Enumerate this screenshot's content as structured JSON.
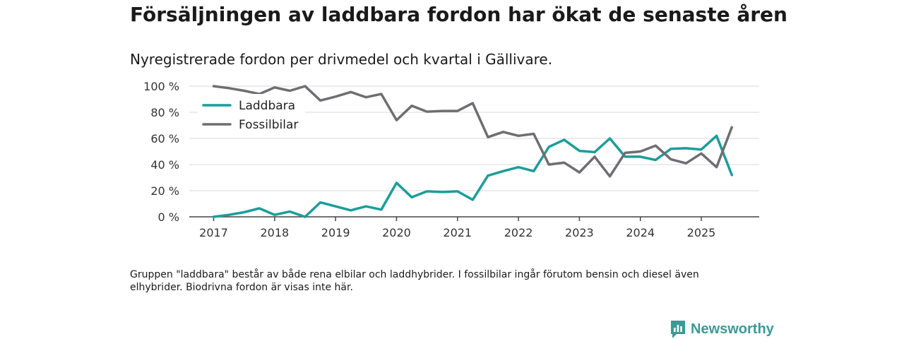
{
  "title": "Försäljningen av laddbara fordon har ökat de senaste åren",
  "subtitle": "Nyregistrerade fordon per drivmedel och kvartal i Gällivare.",
  "footnote": "Gruppen \"laddbara\" består av både rena elbilar och laddhybrider. I fossilbilar ingår förutom bensin och diesel även elhybrider. Biodrivna fordon är visas inte här.",
  "brand": {
    "name": "Newsworthy",
    "icon": "newsworthy-logo-icon",
    "color": "#3a9a96"
  },
  "chart_data": {
    "type": "line",
    "title": "Nyregistrerade fordon per drivmedel och kvartal i Gällivare.",
    "xlabel": "",
    "ylabel": "",
    "ylim": [
      0,
      100
    ],
    "xlim": [
      2016.6,
      2025.95
    ],
    "yticks": [
      0,
      20,
      40,
      60,
      80,
      100
    ],
    "ytick_labels": [
      "0 %",
      "20 %",
      "40 %",
      "60 %",
      "80 %",
      "100 %"
    ],
    "xticks": [
      2017,
      2018,
      2019,
      2020,
      2021,
      2022,
      2023,
      2024,
      2025
    ],
    "xtick_labels": [
      "2017",
      "2018",
      "2019",
      "2020",
      "2021",
      "2022",
      "2023",
      "2024",
      "2025"
    ],
    "legend_position": "top-left",
    "grid": true,
    "x": [
      2017.0,
      2017.25,
      2017.5,
      2017.75,
      2018.0,
      2018.25,
      2018.5,
      2018.75,
      2019.0,
      2019.25,
      2019.5,
      2019.75,
      2020.0,
      2020.25,
      2020.5,
      2020.75,
      2021.0,
      2021.25,
      2021.5,
      2021.75,
      2022.0,
      2022.25,
      2022.5,
      2022.75,
      2023.0,
      2023.25,
      2023.5,
      2023.75,
      2024.0,
      2024.25,
      2024.5,
      2024.75,
      2025.0,
      2025.25,
      2025.5
    ],
    "series": [
      {
        "name": "Laddbara",
        "color": "#1a9e9a",
        "values": [
          0,
          1.5,
          3.5,
          6.5,
          1.5,
          4,
          0,
          11,
          8,
          5,
          8,
          5.5,
          26,
          15,
          19.5,
          19,
          19.5,
          13,
          31.5,
          35,
          38,
          35,
          53.5,
          59,
          50.5,
          49.5,
          60,
          46,
          46,
          43.5,
          52,
          52.5,
          51.5,
          62,
          32
        ]
      },
      {
        "name": "Fossilbilar",
        "color": "#6e6e72",
        "values": [
          100,
          98.5,
          96.5,
          94,
          99,
          96.5,
          100,
          89,
          92,
          95.5,
          91.5,
          94,
          74,
          85,
          80.5,
          81,
          81,
          87,
          61,
          65,
          62,
          63.5,
          40,
          41.5,
          34,
          46,
          31,
          49,
          50,
          54.5,
          44,
          41,
          48.5,
          38,
          68.5
        ]
      }
    ]
  }
}
